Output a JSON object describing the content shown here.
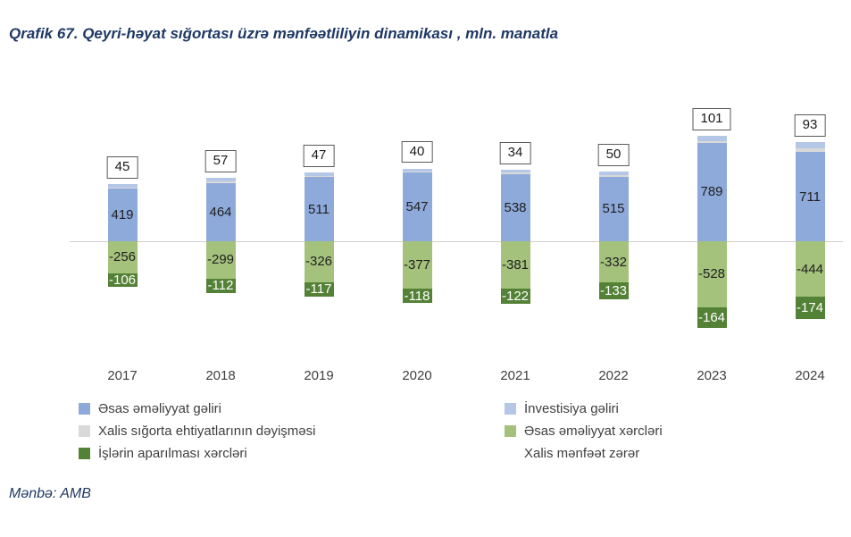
{
  "title": "Qrafik 67. Qeyri-həyat sığortası üzrə mənfəətliliyin dinamikası , mln. manatla",
  "source": "Mənbə: AMB",
  "colors": {
    "title_text": "#1F3864",
    "operating_income": "#8EAADB",
    "investment_income": "#B4C7E7",
    "reserves_change": "#D9D9D9",
    "operating_expenses": "#A5C27C",
    "business_conduct_expenses": "#538135",
    "zero_axis_line": "#D0D0D0",
    "total_box_border": "#595959"
  },
  "chart_data": {
    "type": "bar",
    "stacked": true,
    "grid": false,
    "legend_position": "bottom",
    "unit": "mln. manatla",
    "categories": [
      "2017",
      "2018",
      "2019",
      "2020",
      "2021",
      "2022",
      "2023",
      "2024"
    ],
    "series": [
      {
        "name": "Əsas əməliyyat gəliri",
        "color": "#8EAADB",
        "label_color": "#1f1f1f",
        "show_labels": true,
        "values": [
          419,
          464,
          511,
          547,
          538,
          515,
          789,
          711
        ]
      },
      {
        "name": "Xalis sığorta ehtiyatlarının dəyişməsi",
        "color": "#D9D9D9",
        "label_color": "#1f1f1f",
        "show_labels": false,
        "estimated": true,
        "values": [
          10,
          12,
          10,
          10,
          12,
          14,
          8,
          35
        ]
      },
      {
        "name": "İnvestisiya gəliri",
        "color": "#B4C7E7",
        "label_color": "#1f1f1f",
        "show_labels": false,
        "estimated": true,
        "values": [
          25,
          30,
          28,
          25,
          22,
          25,
          45,
          45
        ]
      },
      {
        "name": "Əsas əməliyyat xərcləri",
        "color": "#A5C27C",
        "label_color": "#1f1f1f",
        "show_labels": true,
        "values": [
          -256,
          -299,
          -326,
          -377,
          -381,
          -332,
          -528,
          -444
        ]
      },
      {
        "name": "İşlərin aparılması xərcləri",
        "color": "#538135",
        "label_color": "#ffffff",
        "show_labels": true,
        "values": [
          -106,
          -112,
          -117,
          -118,
          -122,
          -133,
          -164,
          -174
        ]
      }
    ],
    "totals": {
      "name": "Xalis mənfəət zərər",
      "boxed": true,
      "values": [
        45,
        57,
        47,
        40,
        34,
        50,
        101,
        93
      ]
    }
  },
  "legend": {
    "columns": [
      [
        {
          "label": "Əsas əməliyyat gəliri",
          "swatch": "#8EAADB"
        },
        {
          "label": "Xalis sığorta ehtiyatlarının dəyişməsi",
          "swatch": "#D9D9D9"
        },
        {
          "label": "İşlərin aparılması xərcləri",
          "swatch": "#538135"
        }
      ],
      [
        {
          "label": "İnvestisiya gəliri",
          "swatch": "#B4C7E7"
        },
        {
          "label": "Əsas əməliyyat xərcləri",
          "swatch": "#A5C27C"
        },
        {
          "label": "Xalis mənfəət zərər",
          "swatch": null
        }
      ]
    ]
  }
}
